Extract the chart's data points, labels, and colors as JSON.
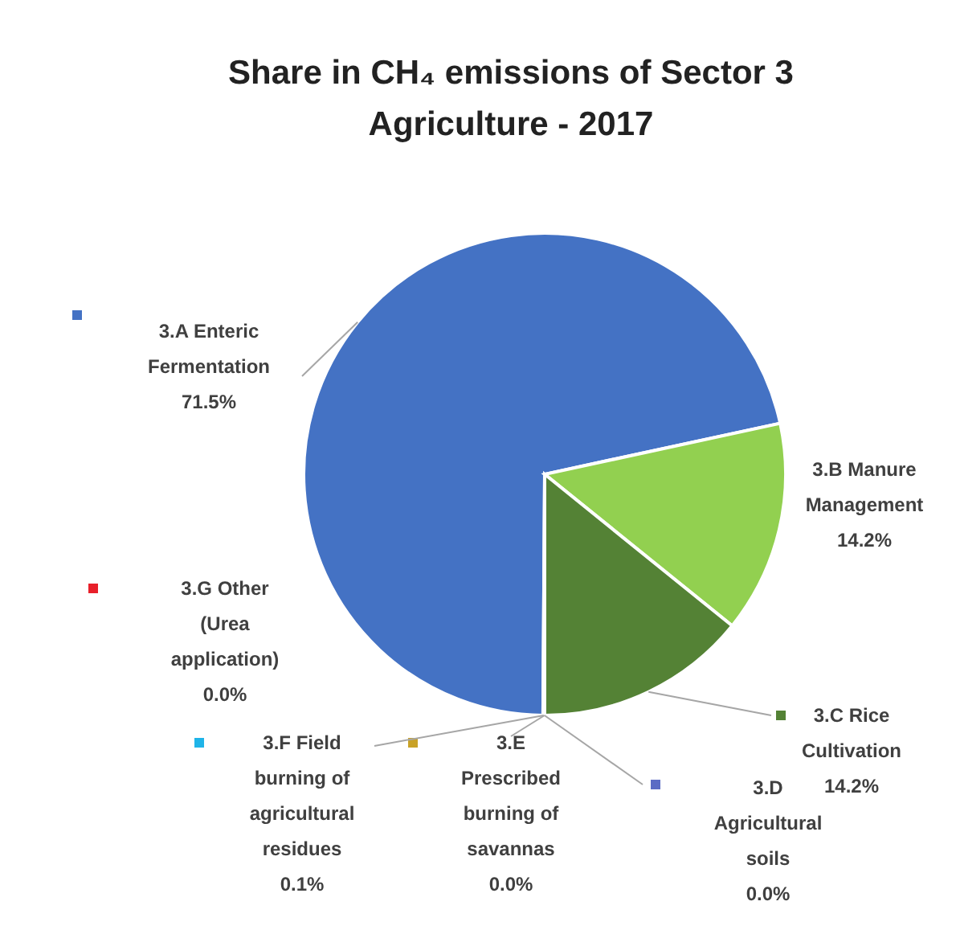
{
  "chart_data": {
    "type": "pie",
    "title": "Share in CH₄ emissions of Sector 3 Agriculture - 2017",
    "categories": [
      "3.A Enteric Fermentation",
      "3.B Manure Management",
      "3.C Rice Cultivation",
      "3.D Agricultural soils",
      "3.E Prescribed burning of savannas",
      "3.F Field burning of agricultural residues",
      "3.G Other (Urea application)"
    ],
    "values": [
      71.5,
      14.2,
      14.2,
      0.0,
      0.0,
      0.1,
      0.0
    ],
    "value_labels": [
      "71.5%",
      "14.2%",
      "14.2%",
      "0.0%",
      "0.0%",
      "0.1%",
      "0.0%"
    ],
    "colors": [
      "#4472c4",
      "#92d050",
      "#548235",
      "#5b6bc4",
      "#c9a227",
      "#1fb4e8",
      "#e8202a"
    ]
  }
}
